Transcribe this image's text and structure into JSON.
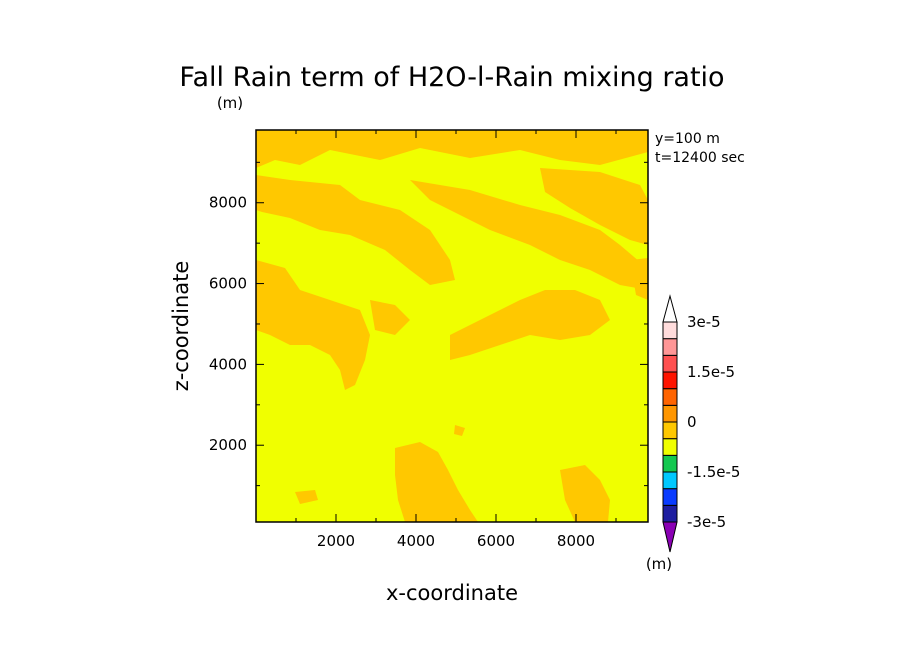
{
  "chart_data": {
    "type": "heatmap",
    "title": "Fall Rain term of H2O-l-Rain mixing ratio",
    "y_unit_label": "(m)",
    "xlabel": "x-coordinate",
    "ylabel": "z-coordinate",
    "annotations": [
      "y=100 m",
      "t=12400 sec"
    ],
    "xlim": [
      0,
      9800
    ],
    "ylim": [
      100,
      9800
    ],
    "x_ticks": [
      2000,
      4000,
      6000,
      8000
    ],
    "x_tick_labels": [
      "2000",
      "4000",
      "6000",
      "8000"
    ],
    "y_ticks": [
      2000,
      4000,
      6000,
      8000
    ],
    "y_tick_labels": [
      "2000",
      "4000",
      "6000",
      "8000"
    ],
    "colorbar": {
      "unit_label": "(m)",
      "levels": [
        -3e-05,
        -2.5e-05,
        -2e-05,
        -1.5e-05,
        -1e-05,
        -5e-06,
        0,
        5e-06,
        1e-05,
        1.5e-05,
        2e-05,
        2.5e-05,
        3e-05
      ],
      "colors": [
        "#8a00b4",
        "#1e1ea0",
        "#0a3cff",
        "#00c8ff",
        "#14c850",
        "#f0ff00",
        "#ffc800",
        "#ff9600",
        "#ff6400",
        "#ff1400",
        "#ff5050",
        "#ff9696",
        "#ffdcdc",
        "#ffffff"
      ],
      "tick_labels": [
        "3e-5",
        "1.5e-5",
        "0",
        "-1.5e-5",
        "-3e-5"
      ],
      "tick_values": [
        3e-05,
        1.5e-05,
        0,
        -1.5e-05,
        -3e-05
      ]
    },
    "field": {
      "background_class": "0 to -5e-6",
      "background_color": "#f0ff00",
      "positive_class": "0 to 5e-6",
      "positive_color": "#ffc800"
    }
  }
}
